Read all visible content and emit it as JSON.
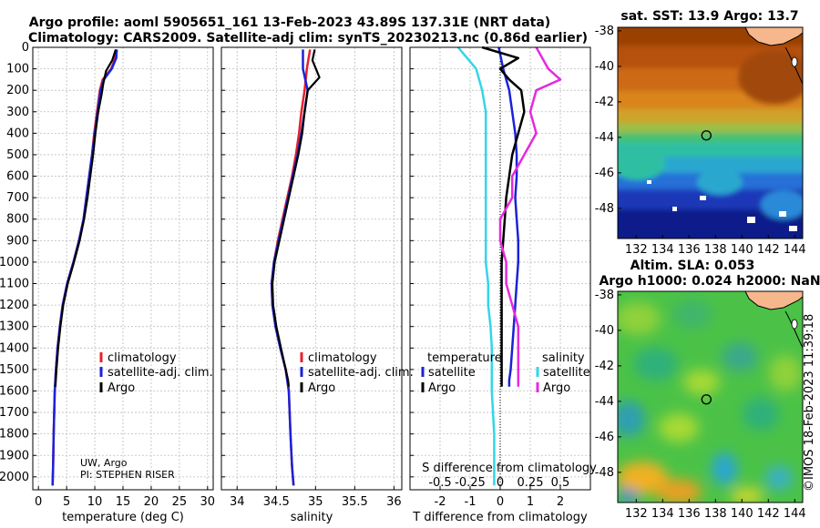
{
  "titles": {
    "line1": "Argo profile: aoml 5905651_161 13-Feb-2023 43.89S 137.31E (NRT data)",
    "line2": "Climatology: CARS2009. Satellite-adj clim: synTS_20230213.nc (0.86d earlier)"
  },
  "credits": {
    "line1": "UW, Argo",
    "line2": "PI: STEPHEN RISER"
  },
  "copyright": "©IMOS 18-Feb-2023 11:39:18",
  "colors": {
    "climatology": "#e8202a",
    "satellite": "#1a22d8",
    "argo": "#000000",
    "sat_T": "#33d6e6",
    "argo_S": "#e629e0"
  },
  "chart_data": [
    {
      "type": "line",
      "id": "temperature",
      "xlabel": "temperature (deg C)",
      "xlim": [
        -1,
        31
      ],
      "ylim": [
        2060,
        0
      ],
      "xticks": [
        0,
        5,
        10,
        15,
        20,
        25,
        30
      ],
      "xtick_labels": [
        "0",
        "5",
        "10",
        "15",
        "20",
        "25",
        "30"
      ],
      "yticks": [
        0,
        100,
        200,
        300,
        400,
        500,
        600,
        700,
        800,
        900,
        1000,
        1100,
        1200,
        1300,
        1400,
        1500,
        1600,
        1700,
        1800,
        1900,
        2000
      ],
      "ytick_labels": [
        "0",
        "100",
        "200",
        "300",
        "400",
        "500",
        "600",
        "700",
        "800",
        "900",
        "1000",
        "1100",
        "1200",
        "1300",
        "1400",
        "1500",
        "1600",
        "1700",
        "1800",
        "1900",
        "2000"
      ],
      "legend": [
        "climatology",
        "satellite-adj. clim.",
        "Argo"
      ],
      "series": [
        {
          "name": "climatology",
          "color": "#e8202a",
          "width": 2.5,
          "x": [
            13.9,
            13.5,
            12.9,
            11.4,
            10.9,
            10.4,
            9.9,
            9.5,
            9.0,
            8.5,
            8.0,
            7.2,
            6.2,
            5.1,
            4.3,
            3.8,
            3.4,
            3.1,
            2.9,
            2.7,
            2.6,
            2.5
          ],
          "y": [
            10,
            60,
            100,
            150,
            200,
            300,
            400,
            500,
            600,
            700,
            800,
            900,
            1000,
            1100,
            1200,
            1300,
            1400,
            1500,
            1600,
            1800,
            1950,
            2040
          ]
        },
        {
          "name": "satellite-adj. clim.",
          "color": "#1a22d8",
          "width": 2.5,
          "x": [
            13.9,
            13.8,
            13.0,
            11.6,
            11.0,
            10.5,
            10.0,
            9.5,
            9.0,
            8.5,
            8.0,
            7.2,
            6.2,
            5.1,
            4.3,
            3.8,
            3.4,
            3.1,
            2.9,
            2.7,
            2.6,
            2.5
          ],
          "y": [
            10,
            50,
            100,
            150,
            200,
            300,
            400,
            500,
            600,
            700,
            800,
            900,
            1000,
            1100,
            1200,
            1300,
            1400,
            1500,
            1600,
            1800,
            1950,
            2040
          ]
        },
        {
          "name": "Argo",
          "color": "#000000",
          "width": 2.2,
          "x": [
            13.7,
            13.1,
            12.0,
            11.5,
            11.2,
            10.6,
            10.1,
            9.7,
            9.2,
            8.7,
            8.1,
            7.3,
            6.3,
            5.2,
            4.4,
            3.9,
            3.5,
            3.2,
            3.0
          ],
          "y": [
            10,
            60,
            110,
            170,
            220,
            300,
            400,
            500,
            600,
            700,
            800,
            900,
            1000,
            1100,
            1200,
            1300,
            1400,
            1500,
            1580
          ]
        }
      ]
    },
    {
      "type": "line",
      "id": "salinity",
      "xlabel": "salinity",
      "xlim": [
        33.8,
        36.1
      ],
      "ylim": [
        2060,
        0
      ],
      "xticks": [
        34,
        34.5,
        35,
        35.5,
        36
      ],
      "xtick_labels": [
        "34",
        "34.5",
        "35",
        "35.5",
        "36"
      ],
      "legend": [
        "climatology",
        "satellite-adj. clim.",
        "Argo"
      ],
      "series": [
        {
          "name": "climatology",
          "color": "#e8202a",
          "width": 2.5,
          "x": [
            34.93,
            34.89,
            34.86,
            34.82,
            34.79,
            34.75,
            34.7,
            34.64,
            34.58,
            34.52,
            34.47,
            34.44,
            34.45,
            34.49,
            34.55,
            34.62,
            34.66,
            34.68,
            34.7,
            34.72
          ],
          "y": [
            10,
            100,
            200,
            300,
            400,
            500,
            600,
            700,
            800,
            900,
            1000,
            1100,
            1200,
            1300,
            1400,
            1500,
            1600,
            1800,
            1950,
            2040
          ]
        },
        {
          "name": "satellite-adj. clim.",
          "color": "#1a22d8",
          "width": 2.5,
          "x": [
            34.84,
            34.84,
            34.9,
            34.86,
            34.82,
            34.77,
            34.71,
            34.65,
            34.59,
            34.53,
            34.47,
            34.44,
            34.45,
            34.49,
            34.55,
            34.62,
            34.66,
            34.68,
            34.7,
            34.72
          ],
          "y": [
            10,
            100,
            200,
            300,
            400,
            500,
            600,
            700,
            800,
            900,
            1000,
            1100,
            1200,
            1300,
            1400,
            1500,
            1600,
            1800,
            1950,
            2040
          ]
        },
        {
          "name": "Argo",
          "color": "#000000",
          "width": 2.2,
          "x": [
            34.99,
            34.96,
            35.05,
            34.9,
            34.86,
            34.83,
            34.78,
            34.72,
            34.66,
            34.6,
            34.54,
            34.48,
            34.45,
            34.46,
            34.5,
            34.56,
            34.62,
            34.65,
            34.66
          ],
          "y": [
            10,
            60,
            140,
            200,
            300,
            400,
            500,
            600,
            700,
            800,
            900,
            1000,
            1100,
            1200,
            1300,
            1400,
            1500,
            1550,
            1580
          ]
        }
      ]
    },
    {
      "type": "line",
      "id": "differences",
      "xlabel": "T difference from climatology",
      "xlabel2": "S difference from climatology",
      "xlim": [
        -3,
        3
      ],
      "ylim": [
        2060,
        0
      ],
      "xticks": [
        -2,
        -1,
        0,
        1,
        2
      ],
      "xtick_labels": [
        "-2",
        "-1",
        "0",
        "1",
        "2"
      ],
      "xticks2": [
        -0.5,
        -0.25,
        0,
        0.25,
        0.5
      ],
      "xtick2_labels": [
        "-0.5",
        "-0.25",
        "0",
        "0.25",
        "0.5"
      ],
      "s_to_t_scale": 4,
      "legend_temperature": {
        "heading": "temperature",
        "items": [
          "satellite",
          "Argo"
        ]
      },
      "legend_salinity": {
        "heading": "salinity",
        "items": [
          "satellite",
          "Argo"
        ]
      },
      "series": [
        {
          "name": "T satellite",
          "color": "#1a22d8",
          "width": 2.5,
          "x": [
            -0.05,
            0.1,
            0.3,
            0.4,
            0.5,
            0.55,
            0.55,
            0.5,
            0.55,
            0.6,
            0.6,
            0.55,
            0.5,
            0.45,
            0.4,
            0.35,
            0.3,
            0.3
          ],
          "y": [
            0,
            100,
            200,
            300,
            400,
            500,
            600,
            700,
            800,
            900,
            1000,
            1100,
            1200,
            1300,
            1400,
            1500,
            1550,
            1580
          ]
        },
        {
          "name": "T Argo",
          "color": "#000000",
          "width": 2.5,
          "x": [
            -0.6,
            0.6,
            0.0,
            0.3,
            0.7,
            0.8,
            0.6,
            0.4,
            0.3,
            0.2,
            0.15,
            0.1,
            0.05,
            0.05,
            0.05,
            0.05,
            0.05,
            0.05,
            0.05
          ],
          "y": [
            0,
            50,
            100,
            150,
            200,
            300,
            400,
            500,
            600,
            700,
            800,
            900,
            1000,
            1100,
            1200,
            1300,
            1400,
            1500,
            1580
          ]
        },
        {
          "name": "S satellite",
          "color": "#33d6e6",
          "width": 2.5,
          "x": [
            -0.35,
            -0.2,
            -0.15,
            -0.12,
            -0.12,
            -0.12,
            -0.12,
            -0.12,
            -0.12,
            -0.12,
            -0.12,
            -0.1,
            -0.1,
            -0.08,
            -0.07,
            -0.07,
            -0.07,
            -0.05,
            -0.05
          ],
          "y": [
            0,
            100,
            200,
            300,
            400,
            500,
            600,
            700,
            800,
            900,
            1000,
            1100,
            1200,
            1300,
            1400,
            1500,
            1600,
            1800,
            2040
          ]
        },
        {
          "name": "S Argo",
          "color": "#e629e0",
          "width": 2.5,
          "x": [
            0.3,
            0.4,
            0.5,
            0.3,
            0.25,
            0.3,
            0.2,
            0.1,
            0.1,
            0.0,
            0.0,
            0.05,
            0.05,
            0.1,
            0.15,
            0.15,
            0.15
          ],
          "y": [
            0,
            100,
            150,
            200,
            300,
            400,
            500,
            600,
            700,
            800,
            900,
            1000,
            1100,
            1200,
            1300,
            1400,
            1580
          ]
        }
      ]
    },
    {
      "type": "heatmap",
      "id": "sst_map",
      "title": "sat. SST: 13.9 Argo: 13.7",
      "xlim": [
        130.6,
        144.6
      ],
      "ylim": [
        -49.7,
        -37.8
      ],
      "xticks": [
        132,
        134,
        136,
        138,
        140,
        142,
        144
      ],
      "xtick_labels": [
        "132",
        "134",
        "136",
        "138",
        "140",
        "142",
        "144"
      ],
      "yticks": [
        -38,
        -40,
        -42,
        -44,
        -46,
        -48
      ],
      "ytick_labels": [
        "-38",
        "-40",
        "-42",
        "-44",
        "-46",
        "-48"
      ],
      "argo_position": [
        137.31,
        -43.89
      ]
    },
    {
      "type": "heatmap",
      "id": "sla_map",
      "title": "Altim. SLA: 0.053",
      "subtitle": "Argo h1000: 0.024 h2000: NaN",
      "xlim": [
        130.6,
        144.6
      ],
      "ylim": [
        -49.7,
        -37.8
      ],
      "xticks": [
        132,
        134,
        136,
        138,
        140,
        142,
        144
      ],
      "xtick_labels": [
        "132",
        "134",
        "136",
        "138",
        "140",
        "142",
        "144"
      ],
      "yticks": [
        -38,
        -40,
        -42,
        -44,
        -46,
        -48
      ],
      "ytick_labels": [
        "-38",
        "-40",
        "-42",
        "-44",
        "-46",
        "-48"
      ],
      "argo_position": [
        137.31,
        -43.89
      ]
    }
  ]
}
